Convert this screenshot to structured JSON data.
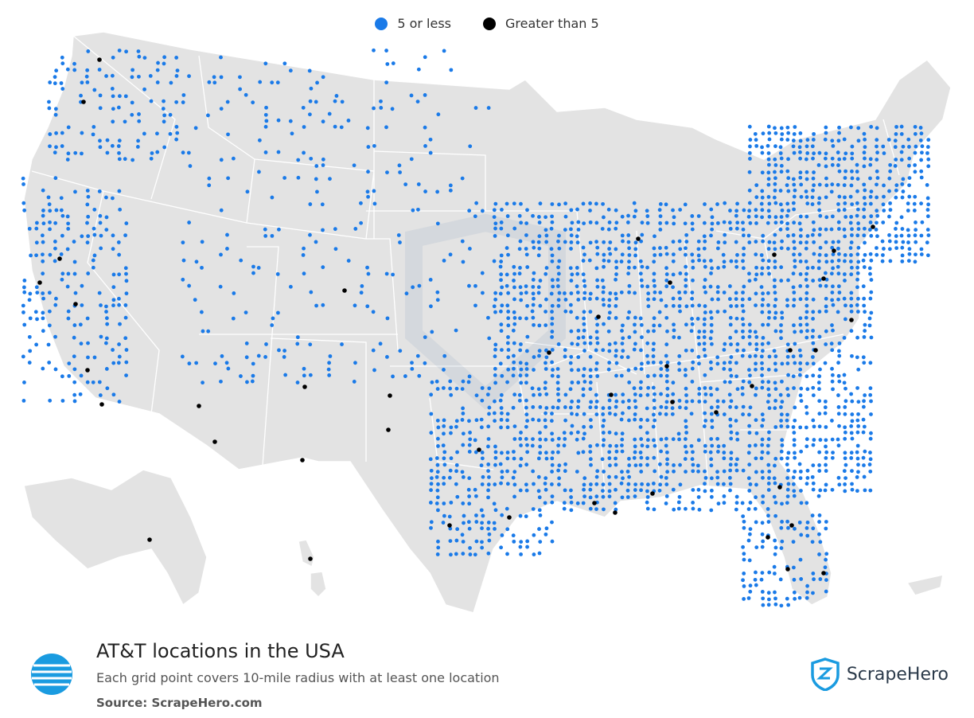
{
  "legend": [
    {
      "label": "5 or less",
      "color": "#1a7ae8"
    },
    {
      "label": "Greater than 5",
      "color": "#000000"
    }
  ],
  "title": "AT&T locations in the USA",
  "subtitle": "Each grid point covers 10-mile radius with at least one location",
  "source": "Source: ScrapeHero.com",
  "brand": "ScrapeHero",
  "colors": {
    "land": "#e3e3e3",
    "border": "#ffffff",
    "low": "#1a7ae8",
    "high": "#000000",
    "logo": "#1a9be0",
    "brand_icon": "#1a9be0"
  },
  "icons": {
    "att_logo": "att-globe-icon",
    "brand_logo": "scrapehero-shield-icon"
  }
}
